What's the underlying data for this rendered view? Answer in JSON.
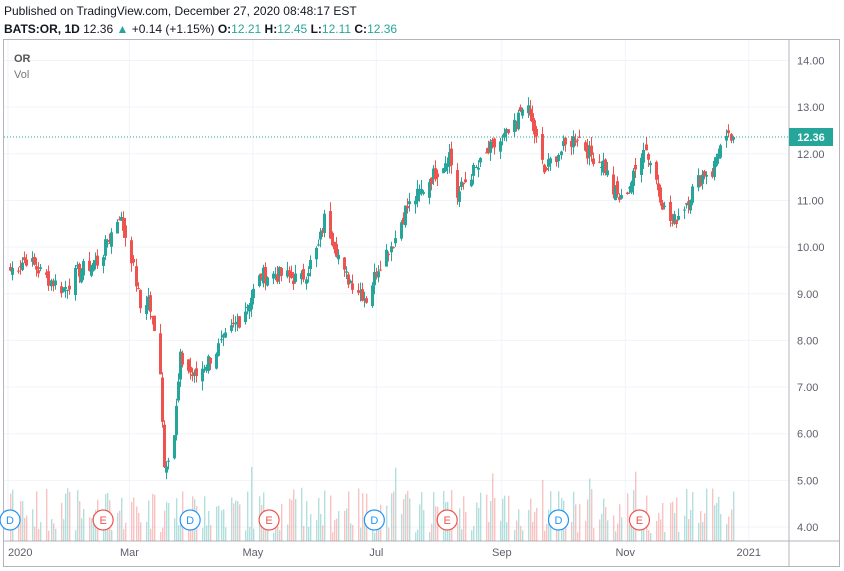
{
  "header": {
    "published": "Published on TradingView.com, December 27, 2020 08:48:17 EST",
    "symbol": "BATS:OR, 1D",
    "last": "12.36",
    "arrow": "▲",
    "change": "+0.14 (+1.15%)",
    "o_label": "O:",
    "o_value": "12.21",
    "h_label": "H:",
    "h_value": "12.45",
    "l_label": "L:",
    "l_value": "12.11",
    "c_label": "C:",
    "c_value": "12.36"
  },
  "legend": {
    "symbol": "OR",
    "volume": "Vol"
  },
  "colors": {
    "up": "#26a69a",
    "down": "#ef5350",
    "price_line": "#26a69a",
    "grid": "#f0f3fa",
    "axis_text": "#5d606b"
  },
  "chart_data": {
    "type": "candlestick",
    "title": "",
    "xlabel": "",
    "ylabel": "",
    "ylim": [
      3.8,
      14.3
    ],
    "y_ticks": [
      "14.00",
      "13.00",
      "12.00",
      "11.00",
      "10.00",
      "9.00",
      "8.00",
      "7.00",
      "6.00",
      "5.00",
      "4.00"
    ],
    "x_ticks": [
      "2020",
      "Mar",
      "May",
      "Jul",
      "Sep",
      "Nov",
      "2021"
    ],
    "x_tick_dates": [
      "2020-01-01",
      "2020-03-01",
      "2020-05-01",
      "2020-07-01",
      "2020-09-01",
      "2020-11-01",
      "2021-01-01"
    ],
    "x_range": [
      "2020-01-01",
      "2021-01-12"
    ],
    "last_price": 12.36,
    "last_price_label": "12.36",
    "close_path": [
      [
        "2020-01-02",
        9.5
      ],
      [
        "2020-01-10",
        9.75
      ],
      [
        "2020-01-20",
        9.35
      ],
      [
        "2020-01-28",
        9.1
      ],
      [
        "2020-02-05",
        9.5
      ],
      [
        "2020-02-15",
        9.7
      ],
      [
        "2020-02-20",
        10.2
      ],
      [
        "2020-02-25",
        10.7
      ],
      [
        "2020-03-02",
        9.8
      ],
      [
        "2020-03-06",
        8.7
      ],
      [
        "2020-03-10",
        8.9
      ],
      [
        "2020-03-16",
        7.4
      ],
      [
        "2020-03-18",
        5.3
      ],
      [
        "2020-03-23",
        6.0
      ],
      [
        "2020-03-26",
        7.6
      ],
      [
        "2020-04-02",
        7.2
      ],
      [
        "2020-04-15",
        7.9
      ],
      [
        "2020-04-25",
        8.5
      ],
      [
        "2020-05-05",
        9.4
      ],
      [
        "2020-05-15",
        9.4
      ],
      [
        "2020-05-25",
        9.3
      ],
      [
        "2020-06-02",
        10.0
      ],
      [
        "2020-06-05",
        10.6
      ],
      [
        "2020-06-10",
        10.1
      ],
      [
        "2020-06-15",
        9.4
      ],
      [
        "2020-06-20",
        9.2
      ],
      [
        "2020-06-26",
        8.9
      ],
      [
        "2020-07-02",
        9.6
      ],
      [
        "2020-07-10",
        10.2
      ],
      [
        "2020-07-15",
        10.8
      ],
      [
        "2020-07-23",
        11.2
      ],
      [
        "2020-07-28",
        11.5
      ],
      [
        "2020-08-03",
        11.8
      ],
      [
        "2020-08-06",
        12.0
      ],
      [
        "2020-08-10",
        11.1
      ],
      [
        "2020-08-15",
        11.5
      ],
      [
        "2020-08-20",
        11.7
      ],
      [
        "2020-08-26",
        12.1
      ],
      [
        "2020-09-01",
        12.3
      ],
      [
        "2020-09-08",
        12.6
      ],
      [
        "2020-09-11",
        13.1
      ],
      [
        "2020-09-15",
        12.8
      ],
      [
        "2020-09-22",
        11.6
      ],
      [
        "2020-09-26",
        11.9
      ],
      [
        "2020-10-01",
        12.1
      ],
      [
        "2020-10-08",
        12.4
      ],
      [
        "2020-10-14",
        12.0
      ],
      [
        "2020-10-21",
        11.8
      ],
      [
        "2020-10-26",
        11.2
      ],
      [
        "2020-10-30",
        11.0
      ],
      [
        "2020-11-05",
        11.5
      ],
      [
        "2020-11-10",
        12.2
      ],
      [
        "2020-11-15",
        11.6
      ],
      [
        "2020-11-20",
        10.8
      ],
      [
        "2020-11-24",
        10.5
      ],
      [
        "2020-11-30",
        10.9
      ],
      [
        "2020-12-05",
        11.3
      ],
      [
        "2020-12-10",
        11.6
      ],
      [
        "2020-12-14",
        11.6
      ],
      [
        "2020-12-17",
        12.1
      ],
      [
        "2020-12-24",
        12.36
      ]
    ],
    "events": [
      {
        "label": "D",
        "type": "dividend",
        "date": "2020-01-02"
      },
      {
        "label": "E",
        "type": "earnings",
        "date": "2020-02-17"
      },
      {
        "label": "D",
        "type": "dividend",
        "date": "2020-03-31"
      },
      {
        "label": "E",
        "type": "earnings",
        "date": "2020-05-09"
      },
      {
        "label": "D",
        "type": "dividend",
        "date": "2020-06-30"
      },
      {
        "label": "E",
        "type": "earnings",
        "date": "2020-08-05"
      },
      {
        "label": "D",
        "type": "dividend",
        "date": "2020-09-29"
      },
      {
        "label": "E",
        "type": "earnings",
        "date": "2020-11-08"
      }
    ]
  }
}
